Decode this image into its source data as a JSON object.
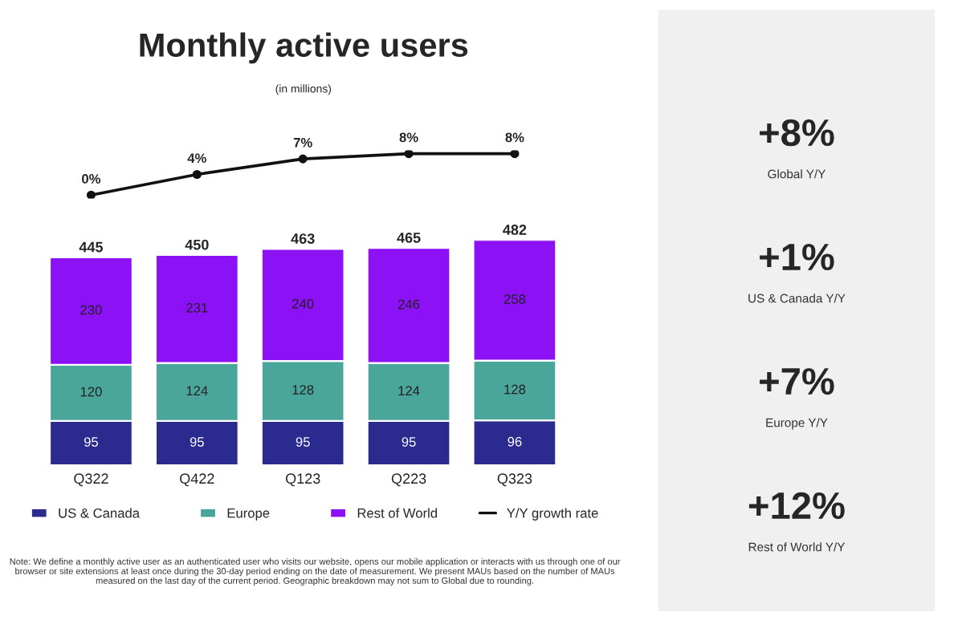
{
  "chart_data": [
    {
      "type": "line",
      "title": "Monthly active users",
      "subtitle": "(in millions)",
      "categories": [
        null,
        null,
        null,
        null,
        null
      ],
      "data_labels": true,
      "tick_labels": false,
      "legend": "bottom",
      "grid": false,
      "marker": "circle",
      "series": [
        {
          "name": "Y/Y growth rate",
          "color": "#111111",
          "values": [
            0,
            4,
            7,
            8,
            8
          ],
          "value_labels": [
            "0%",
            "4%",
            "7%",
            "8%",
            "8%"
          ]
        }
      ]
    },
    {
      "type": "bar",
      "categories": [
        "Q322",
        "Q422",
        "Q123",
        "Q223",
        "Q323"
      ],
      "stacked": true,
      "data_labels": true,
      "tick_labels": "x",
      "legend": "bottom",
      "grid": false,
      "series": [
        {
          "name": "US & Canada",
          "color": "#2b2a8f",
          "values": [
            95,
            95,
            95,
            95,
            96
          ]
        },
        {
          "name": "Europe",
          "color": "#4aa59a",
          "values": [
            120,
            124,
            128,
            124,
            128
          ]
        },
        {
          "name": "Rest of World",
          "color": "#8c12f5",
          "values": [
            230,
            231,
            240,
            246,
            258
          ]
        }
      ],
      "totals": [
        "445",
        "450",
        "463",
        "465",
        "482"
      ],
      "annotations": [
        "Note: We define a monthly active user as an authenticated user who visits our website, opens our mobile application or interacts with us through one of our browser or site extensions at least once during the 30-day period ending on the date of measurement. We present MAUs based on the number of MAUs measured on the last day of the current period. Geographic breakdown may not sum to Global due to rounding."
      ]
    },
    {
      "type": "other",
      "annotations": [
        "+8%",
        "Global Y/Y",
        "+1%",
        "US & Canada Y/Y",
        "+7%",
        "Europe Y/Y",
        "+12%",
        "Rest of World Y/Y"
      ]
    }
  ]
}
